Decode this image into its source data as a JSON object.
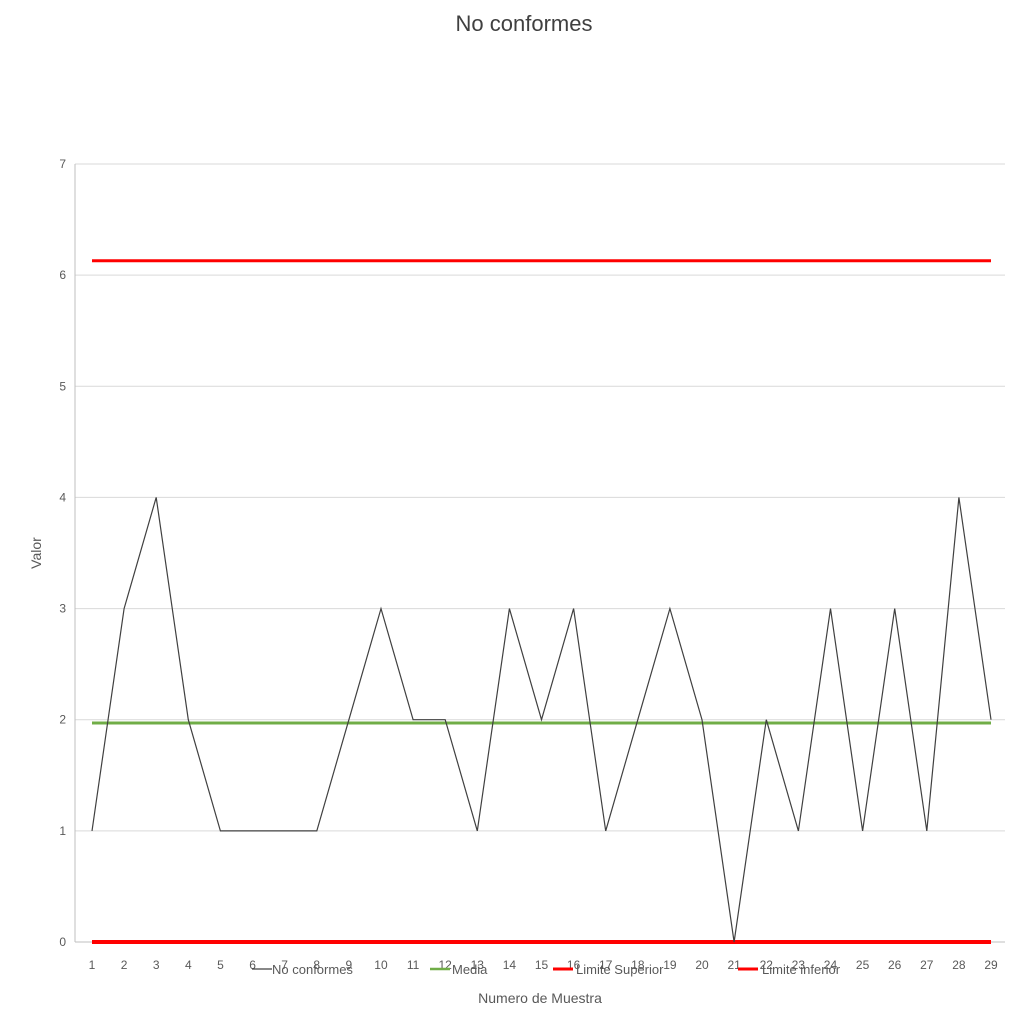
{
  "chart_data": {
    "type": "line",
    "title": "No conformes",
    "xlabel": "Numero de Muestra",
    "ylabel": "Valor",
    "categories": [
      "1",
      "2",
      "3",
      "4",
      "5",
      "6",
      "7",
      "8",
      "9",
      "10",
      "11",
      "12",
      "13",
      "14",
      "15",
      "16",
      "17",
      "18",
      "19",
      "20",
      "21",
      "22",
      "23",
      "24",
      "25",
      "26",
      "27",
      "28",
      "29"
    ],
    "ylim": [
      0,
      7
    ],
    "yticks": [
      "0",
      "1",
      "2",
      "3",
      "4",
      "5",
      "6",
      "7"
    ],
    "grid": true,
    "legend_position": "bottom",
    "series": [
      {
        "name": "No conformes",
        "color": "#404040",
        "values": [
          1,
          3,
          4,
          2,
          1,
          1,
          1,
          1,
          2,
          3,
          2,
          2,
          1,
          3,
          2,
          3,
          1,
          2,
          3,
          2,
          0,
          2,
          1,
          3,
          1,
          3,
          1,
          4,
          2
        ]
      },
      {
        "name": "Media",
        "color": "#70ad47",
        "values": [
          1.97,
          1.97,
          1.97,
          1.97,
          1.97,
          1.97,
          1.97,
          1.97,
          1.97,
          1.97,
          1.97,
          1.97,
          1.97,
          1.97,
          1.97,
          1.97,
          1.97,
          1.97,
          1.97,
          1.97,
          1.97,
          1.97,
          1.97,
          1.97,
          1.97,
          1.97,
          1.97,
          1.97,
          1.97
        ]
      },
      {
        "name": "Limite Superior",
        "color": "#ff0000",
        "values": [
          6.13,
          6.13,
          6.13,
          6.13,
          6.13,
          6.13,
          6.13,
          6.13,
          6.13,
          6.13,
          6.13,
          6.13,
          6.13,
          6.13,
          6.13,
          6.13,
          6.13,
          6.13,
          6.13,
          6.13,
          6.13,
          6.13,
          6.13,
          6.13,
          6.13,
          6.13,
          6.13,
          6.13,
          6.13
        ]
      },
      {
        "name": "Limite inferior",
        "color": "#ff0000",
        "values": [
          0,
          0,
          0,
          0,
          0,
          0,
          0,
          0,
          0,
          0,
          0,
          0,
          0,
          0,
          0,
          0,
          0,
          0,
          0,
          0,
          0,
          0,
          0,
          0,
          0,
          0,
          0,
          0,
          0
        ]
      }
    ]
  }
}
